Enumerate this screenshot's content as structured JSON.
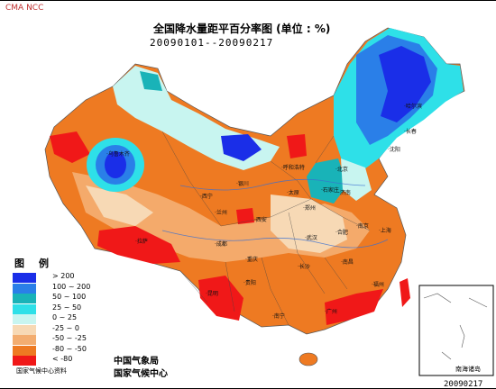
{
  "header": {
    "corner_tag": "CMA NCC",
    "title": "全国降水量距平百分率图 (单位 : %)",
    "date_range": "20090101--20090217"
  },
  "legend": {
    "title": "图例",
    "items": [
      {
        "label": "> 200",
        "color": "#1a2ee8"
      },
      {
        "label": "100 ~ 200",
        "color": "#2a7fe8"
      },
      {
        "label": "50 ~ 100",
        "color": "#19b3b8"
      },
      {
        "label": "25 ~ 50",
        "color": "#2ee0e8"
      },
      {
        "label": "0 ~ 25",
        "color": "#c8f5f0"
      },
      {
        "label": "-25 ~ 0",
        "color": "#f7d9b5"
      },
      {
        "label": "-50 ~ -25",
        "color": "#f3ad70"
      },
      {
        "label": "-80 ~ -50",
        "color": "#ee7a22"
      },
      {
        "label": "< -80",
        "color": "#f01818"
      }
    ],
    "source_note": "国家气候中心资料"
  },
  "footer": {
    "org_line_1": "中国气象局",
    "org_line_2": "国家气候中心",
    "inset_caption": "南海诸岛",
    "issue_code": "20090217"
  },
  "map": {
    "cities": [
      "乌鲁木齐",
      "拉萨",
      "西宁",
      "兰州",
      "银川",
      "呼和浩特",
      "北京",
      "哈尔滨",
      "成都",
      "重庆",
      "昆明",
      "贵阳",
      "南宁",
      "广州",
      "福州",
      "上海",
      "武汉",
      "长沙",
      "南昌",
      "合肥",
      "南京",
      "郑州",
      "济南",
      "石家庄",
      "太原",
      "西安",
      "沈阳",
      "长春"
    ]
  }
}
